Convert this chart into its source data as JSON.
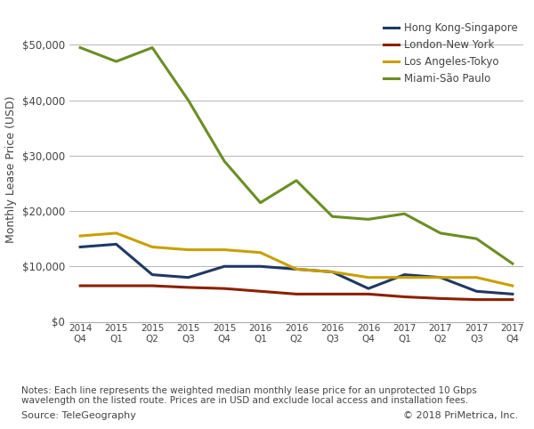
{
  "quarters": [
    "2014\nQ4",
    "2015\nQ1",
    "2015\nQ2",
    "2015\nQ3",
    "2015\nQ4",
    "2016\nQ1",
    "2016\nQ2",
    "2016\nQ3",
    "2016\nQ4",
    "2017\nQ1",
    "2017\nQ2",
    "2017\nQ3",
    "2017\nQ4"
  ],
  "hong_kong_singapore": [
    13500,
    14000,
    8500,
    8000,
    10000,
    10000,
    9500,
    9000,
    6000,
    8500,
    8000,
    5500,
    5000
  ],
  "london_new_york": [
    6500,
    6500,
    6500,
    6200,
    6000,
    5500,
    5000,
    5000,
    5000,
    4500,
    4200,
    4000,
    4000
  ],
  "los_angeles_tokyo": [
    15500,
    16000,
    13500,
    13000,
    13000,
    12500,
    9500,
    9000,
    8000,
    8000,
    8000,
    8000,
    6500
  ],
  "miami_sao_paulo": [
    49500,
    47000,
    49500,
    40000,
    29000,
    21500,
    25500,
    19000,
    18500,
    19500,
    16000,
    15000,
    10500
  ],
  "colors": {
    "hong_kong_singapore": "#1f3864",
    "london_new_york": "#8b2000",
    "los_angeles_tokyo": "#c8a000",
    "miami_sao_paulo": "#6b8e23"
  },
  "legend_labels": [
    "Hong Kong-Singapore",
    "London-New York",
    "Los Angeles-Tokyo",
    "Miami-São Paulo"
  ],
  "ylabel": "Monthly Lease Price (USD)",
  "ylim": [
    0,
    55000
  ],
  "yticks": [
    0,
    10000,
    20000,
    30000,
    40000,
    50000
  ],
  "notes": "Notes: Each line represents the weighted median monthly lease price for an unprotected 10 Gbps\nwavelength on the listed route. Prices are in USD and exclude local access and installation fees.",
  "source": "Source: TeleGeography",
  "copyright": "© 2018 PriMetrica, Inc.",
  "background_color": "#ffffff",
  "grid_color": "#aaaaaa",
  "line_width": 2.2
}
